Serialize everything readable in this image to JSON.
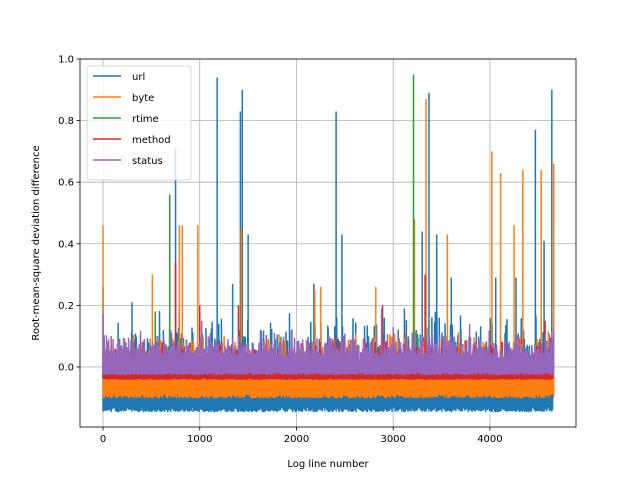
{
  "chart_data": {
    "type": "line",
    "title": "",
    "xlabel": "Log line number",
    "ylabel": "Root-mean-square deviation difference",
    "xlim": [
      -238,
      4890
    ],
    "ylim": [
      -0.195,
      1.0
    ],
    "xticks": [
      0,
      1000,
      2000,
      3000,
      4000
    ],
    "yticks": [
      0.0,
      0.2,
      0.4,
      0.6,
      0.8,
      1.0
    ],
    "xtick_labels": [
      "0",
      "1000",
      "2000",
      "3000",
      "4000"
    ],
    "ytick_labels": [
      "0.0",
      "0.2",
      "0.4",
      "0.6",
      "0.8",
      "1.0"
    ],
    "grid": true,
    "legend_position": "top-left",
    "n_points": 4650,
    "series": [
      {
        "name": "url",
        "color": "#1f77b4",
        "baseline_range": [
          -0.145,
          -0.08
        ],
        "typical_max": 0.2,
        "spikes": [
          [
            0,
            0.26
          ],
          [
            300,
            0.21
          ],
          [
            750,
            0.71
          ],
          [
            1180,
            0.94
          ],
          [
            1420,
            0.83
          ],
          [
            1440,
            0.9
          ],
          [
            1500,
            0.43
          ],
          [
            1340,
            0.27
          ],
          [
            2410,
            0.83
          ],
          [
            2470,
            0.43
          ],
          [
            2180,
            0.27
          ],
          [
            3300,
            0.44
          ],
          [
            3370,
            0.89
          ],
          [
            3450,
            0.43
          ],
          [
            3600,
            0.29
          ],
          [
            4060,
            0.29
          ],
          [
            4270,
            0.29
          ],
          [
            4470,
            0.77
          ],
          [
            4560,
            0.41
          ],
          [
            4640,
            0.9
          ]
        ]
      },
      {
        "name": "byte",
        "color": "#ff7f0e",
        "baseline_range": [
          -0.1,
          -0.03
        ],
        "typical_max": 0.12,
        "spikes": [
          [
            0,
            0.46
          ],
          [
            510,
            0.3
          ],
          [
            790,
            0.46
          ],
          [
            820,
            0.46
          ],
          [
            980,
            0.46
          ],
          [
            1430,
            0.45
          ],
          [
            2190,
            0.25
          ],
          [
            2250,
            0.26
          ],
          [
            2820,
            0.26
          ],
          [
            3220,
            0.48
          ],
          [
            3340,
            0.87
          ],
          [
            3560,
            0.43
          ],
          [
            4020,
            0.7
          ],
          [
            4110,
            0.63
          ],
          [
            4250,
            0.46
          ],
          [
            4340,
            0.64
          ],
          [
            4530,
            0.64
          ],
          [
            4660,
            0.66
          ]
        ]
      },
      {
        "name": "rtime",
        "color": "#2ca02c",
        "baseline_range": [
          -0.035,
          -0.025
        ],
        "typical_max": -0.02,
        "spikes": [
          [
            540,
            0.18
          ],
          [
            690,
            0.56
          ],
          [
            3210,
            0.95
          ],
          [
            3240,
            0.12
          ]
        ]
      },
      {
        "name": "method",
        "color": "#d62728",
        "baseline_range": [
          -0.04,
          -0.02
        ],
        "typical_max": 0.1,
        "spikes": [
          [
            750,
            0.34
          ],
          [
            1000,
            0.2
          ],
          [
            1400,
            0.2
          ],
          [
            2890,
            0.2
          ],
          [
            3330,
            0.3
          ],
          [
            4570,
            0.15
          ]
        ]
      },
      {
        "name": "status",
        "color": "#9467bd",
        "baseline_range": [
          -0.025,
          0.02
        ],
        "typical_max": 0.12,
        "spikes": [
          [
            0,
            0.17
          ],
          [
            700,
            0.12
          ],
          [
            1020,
            0.15
          ],
          [
            2880,
            0.19
          ],
          [
            3000,
            0.13
          ],
          [
            3790,
            0.14
          ],
          [
            4660,
            0.12
          ]
        ]
      }
    ]
  }
}
